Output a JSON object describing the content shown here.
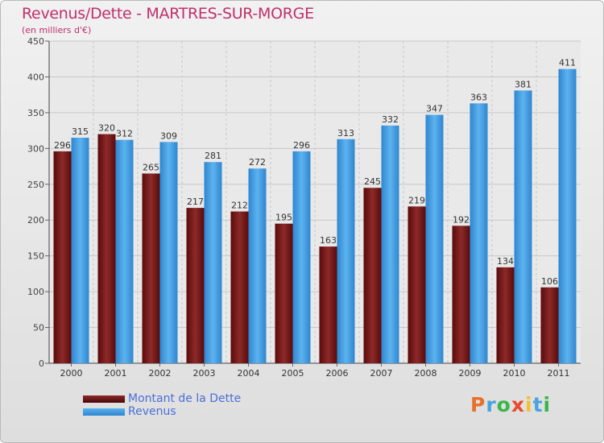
{
  "title": "Revenus/Dette - MARTRES-SUR-MORGE",
  "subtitle": "(en milliers d'€)",
  "logo": {
    "text": "Proxiti",
    "colors": [
      "#e8702a",
      "#4aa3df",
      "#3cb54a",
      "#e84a2a",
      "#f2c12e",
      "#4aa3df",
      "#3cb54a"
    ]
  },
  "colors": {
    "title": "#c0306a",
    "dette": "#7a1414",
    "revenus": "#4aa3e4",
    "legend_text": "#4a6fd8"
  },
  "chart_data": {
    "type": "bar",
    "categories": [
      "2000",
      "2001",
      "2002",
      "2003",
      "2004",
      "2005",
      "2006",
      "2007",
      "2008",
      "2009",
      "2010",
      "2011"
    ],
    "series": [
      {
        "name": "Montant de la Dette",
        "values": [
          296,
          320,
          265,
          217,
          212,
          195,
          163,
          245,
          219,
          192,
          134,
          106
        ]
      },
      {
        "name": "Revenus",
        "values": [
          315,
          312,
          309,
          281,
          272,
          296,
          313,
          332,
          347,
          363,
          381,
          411
        ]
      }
    ],
    "yticks": [
      0,
      50,
      100,
      150,
      200,
      250,
      300,
      350,
      400,
      450
    ],
    "ylim": [
      0,
      450
    ],
    "grid": true,
    "legend_position": "bottom-left"
  }
}
